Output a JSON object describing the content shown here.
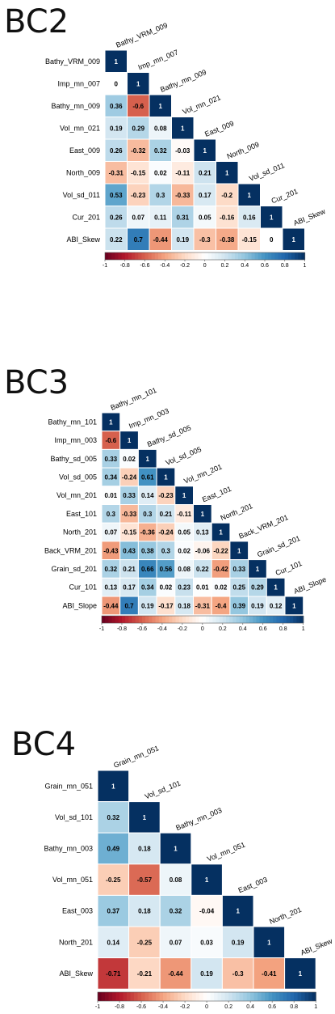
{
  "chart_data": [
    {
      "type": "heatmap",
      "title": "BC2",
      "variables": [
        "Bathy_VRM_009",
        "Imp_mn_007",
        "Bathy_mn_009",
        "Vol_mn_021",
        "East_009",
        "North_009",
        "Vol_sd_011",
        "Cur_201",
        "ABI_Skew"
      ],
      "matrix": [
        [
          1
        ],
        [
          0,
          1
        ],
        [
          0.36,
          -0.6,
          1
        ],
        [
          0.19,
          0.29,
          0.08,
          1
        ],
        [
          0.26,
          -0.32,
          0.32,
          -0.03,
          1
        ],
        [
          -0.31,
          -0.15,
          0.02,
          -0.11,
          0.21,
          1
        ],
        [
          0.53,
          -0.23,
          0.3,
          -0.33,
          0.17,
          -0.2,
          1
        ],
        [
          0.26,
          0.07,
          0.11,
          0.31,
          0.05,
          -0.16,
          0.16,
          1
        ],
        [
          0.22,
          0.7,
          -0.44,
          0.19,
          -0.3,
          -0.38,
          -0.15,
          0,
          1
        ]
      ],
      "colorbar_ticks": [
        "-1",
        "-0.8",
        "-0.6",
        "-0.4",
        "-0.2",
        "0",
        "0.2",
        "0.4",
        "0.6",
        "0.8",
        "1"
      ],
      "range": [
        -1,
        1
      ]
    },
    {
      "type": "heatmap",
      "title": "BC3",
      "variables": [
        "Bathy_mn_101",
        "Imp_mn_003",
        "Bathy_sd_005",
        "Vol_sd_005",
        "Vol_mn_201",
        "East_101",
        "North_201",
        "Back_VRM_201",
        "Grain_sd_201",
        "Cur_101",
        "ABI_Slope"
      ],
      "matrix": [
        [
          1
        ],
        [
          -0.6,
          1
        ],
        [
          0.33,
          0.02,
          1
        ],
        [
          0.34,
          -0.24,
          0.61,
          1
        ],
        [
          0.01,
          0.33,
          0.14,
          -0.23,
          1
        ],
        [
          0.3,
          -0.33,
          0.3,
          0.21,
          -0.11,
          1
        ],
        [
          0.07,
          -0.15,
          -0.36,
          -0.24,
          0.05,
          0.13,
          1
        ],
        [
          -0.43,
          0.43,
          0.38,
          0.3,
          0.02,
          -0.06,
          -0.22,
          1
        ],
        [
          0.32,
          0.21,
          0.66,
          0.56,
          0.08,
          0.22,
          -0.42,
          0.33,
          1
        ],
        [
          0.13,
          0.17,
          0.34,
          0.02,
          0.23,
          0.01,
          0.02,
          0.25,
          0.29,
          1
        ],
        [
          -0.44,
          0.7,
          0.19,
          -0.17,
          0.18,
          -0.31,
          -0.4,
          0.39,
          0.19,
          0.12,
          1
        ]
      ],
      "colorbar_ticks": [
        "-1",
        "-0.8",
        "-0.6",
        "-0.4",
        "-0.2",
        "0",
        "0.2",
        "0.4",
        "0.6",
        "0.8",
        "1"
      ],
      "range": [
        -1,
        1
      ]
    },
    {
      "type": "heatmap",
      "title": "BC4",
      "variables": [
        "Grain_mn_051",
        "Vol_sd_101",
        "Bathy_mn_003",
        "Vol_mn_051",
        "East_003",
        "North_201",
        "ABI_Skew"
      ],
      "matrix": [
        [
          1
        ],
        [
          0.32,
          1
        ],
        [
          0.49,
          0.18,
          1
        ],
        [
          -0.25,
          -0.57,
          0.08,
          1
        ],
        [
          0.37,
          0.18,
          0.32,
          -0.04,
          1
        ],
        [
          0.14,
          -0.25,
          0.07,
          0.03,
          0.19,
          1
        ],
        [
          -0.71,
          -0.21,
          -0.44,
          0.19,
          -0.3,
          -0.41,
          1
        ]
      ],
      "colorbar_ticks": [
        "-1",
        "-0.8",
        "-0.6",
        "-0.4",
        "-0.2",
        "0",
        "0.2",
        "0.4",
        "0.6",
        "0.8",
        "1"
      ],
      "range": [
        -1,
        1
      ]
    }
  ]
}
